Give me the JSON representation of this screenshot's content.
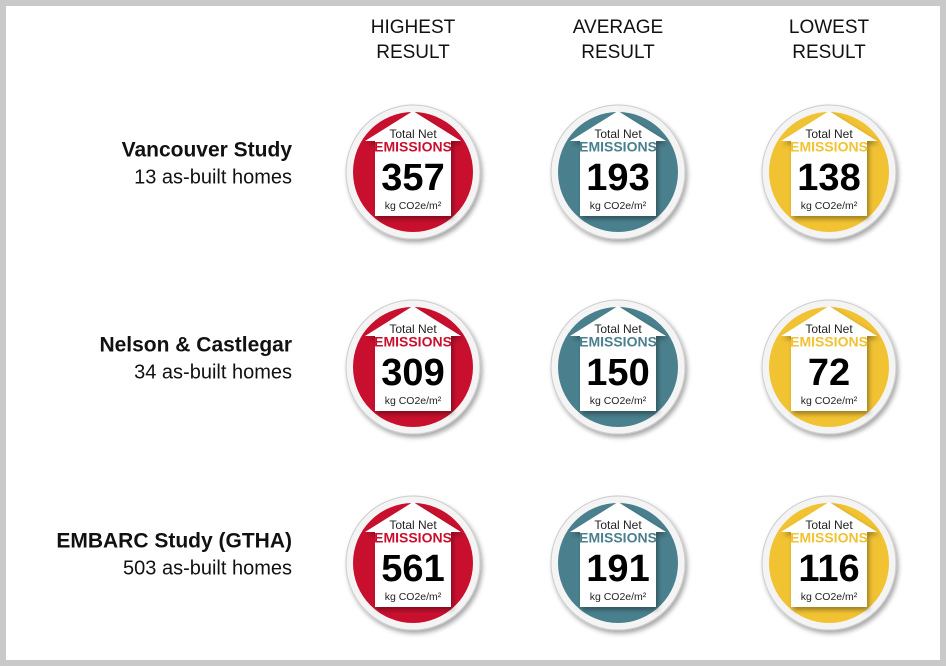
{
  "columns": [
    "HIGHEST\nRESULT",
    "AVERAGE\nRESULT",
    "LOWEST\nRESULT"
  ],
  "badge": {
    "top": "Total Net",
    "label": "EMISSIONS",
    "unit": "kg CO2e/m²"
  },
  "colors": [
    "#c8102e",
    "#4a808d",
    "#f1c232"
  ],
  "rows": [
    {
      "name": "Vancouver Study",
      "subtitle": "13 as-built homes",
      "values": [
        357,
        193,
        138
      ]
    },
    {
      "name": "Nelson & Castlegar",
      "subtitle": "34 as-built homes",
      "values": [
        309,
        150,
        72
      ]
    },
    {
      "name": "EMBARC Study (GTHA)",
      "subtitle": "503 as-built homes",
      "values": [
        561,
        191,
        116
      ]
    }
  ]
}
